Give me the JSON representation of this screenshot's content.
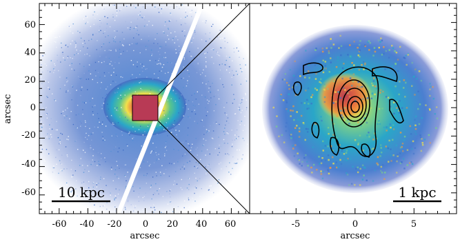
{
  "figure": {
    "left_panel": {
      "ylabel": "arcsec",
      "xlabel": "arcsec",
      "x_ticks": [
        "-60",
        "-40",
        "-20",
        "0",
        "20",
        "40",
        "60"
      ],
      "y_ticks": [
        "60",
        "40",
        "20",
        "0",
        "-20",
        "-40",
        "-60"
      ],
      "scale_bar_label": "10 kpc"
    },
    "right_panel": {
      "xlabel": "arcsec",
      "x_ticks": [
        "-5",
        "0",
        "5"
      ],
      "scale_bar_label": "1 kpc"
    }
  },
  "colors": {
    "background": "#ffffff",
    "outer_disk": "#4b6fc4",
    "mid_disk": "#2aa6c8",
    "bulge_orange": "#f39a3c",
    "bulge_yellow": "#f2e04a",
    "core": "#c0304a",
    "contour": "#000000"
  }
}
